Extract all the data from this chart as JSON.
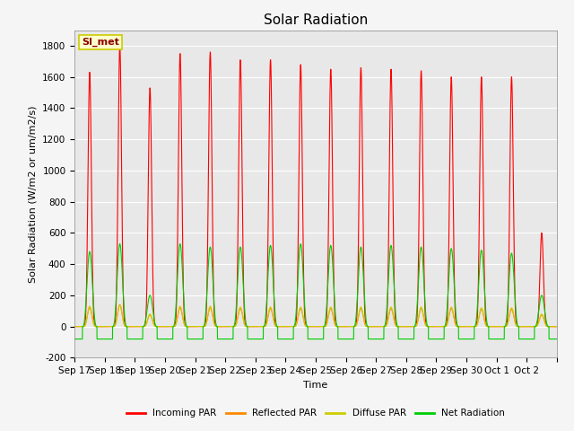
{
  "title": "Solar Radiation",
  "ylabel": "Solar Radiation (W/m2 or um/m2/s)",
  "xlabel": "Time",
  "ylim": [
    -200,
    1900
  ],
  "yticks": [
    -200,
    0,
    200,
    400,
    600,
    800,
    1000,
    1200,
    1400,
    1600,
    1800
  ],
  "plot_bg_color": "#e8e8e8",
  "fig_bg_color": "#f5f5f5",
  "annotation_text": "SI_met",
  "annotation_bg": "#ffffcc",
  "annotation_border": "#cccc00",
  "series": {
    "incoming": {
      "color": "#ff0000",
      "label": "Incoming PAR",
      "lw": 0.8
    },
    "reflected": {
      "color": "#ff8800",
      "label": "Reflected PAR",
      "lw": 0.8
    },
    "diffuse": {
      "color": "#cccc00",
      "label": "Diffuse PAR",
      "lw": 0.8
    },
    "net": {
      "color": "#00cc00",
      "label": "Net Radiation",
      "lw": 0.8
    }
  },
  "n_days": 16,
  "x_tick_labels": [
    "Sep 17",
    "Sep 18",
    "Sep 19",
    "Sep 20",
    "Sep 21",
    "Sep 22",
    "Sep 23",
    "Sep 24",
    "Sep 25",
    "Sep 26",
    "Sep 27",
    "Sep 28",
    "Sep 29",
    "Sep 30",
    "Oct 1",
    "Oct 2"
  ],
  "peak_incoming": [
    1630,
    1800,
    1530,
    1750,
    1760,
    1710,
    1710,
    1680,
    1650,
    1660,
    1650,
    1640,
    1600,
    1600,
    1600,
    600
  ],
  "peak_net": [
    480,
    530,
    200,
    530,
    510,
    510,
    520,
    530,
    520,
    510,
    520,
    510,
    500,
    490,
    470,
    200
  ],
  "peak_reflected": [
    120,
    140,
    75,
    120,
    120,
    115,
    115,
    115,
    115,
    115,
    115,
    115,
    115,
    110,
    110,
    75
  ],
  "peak_diffuse": [
    130,
    135,
    80,
    130,
    130,
    125,
    125,
    125,
    125,
    125,
    125,
    125,
    125,
    120,
    120,
    80
  ],
  "night_net": -80,
  "grid_color": "#ffffff",
  "title_fontsize": 11,
  "label_fontsize": 8,
  "tick_fontsize": 7.5
}
